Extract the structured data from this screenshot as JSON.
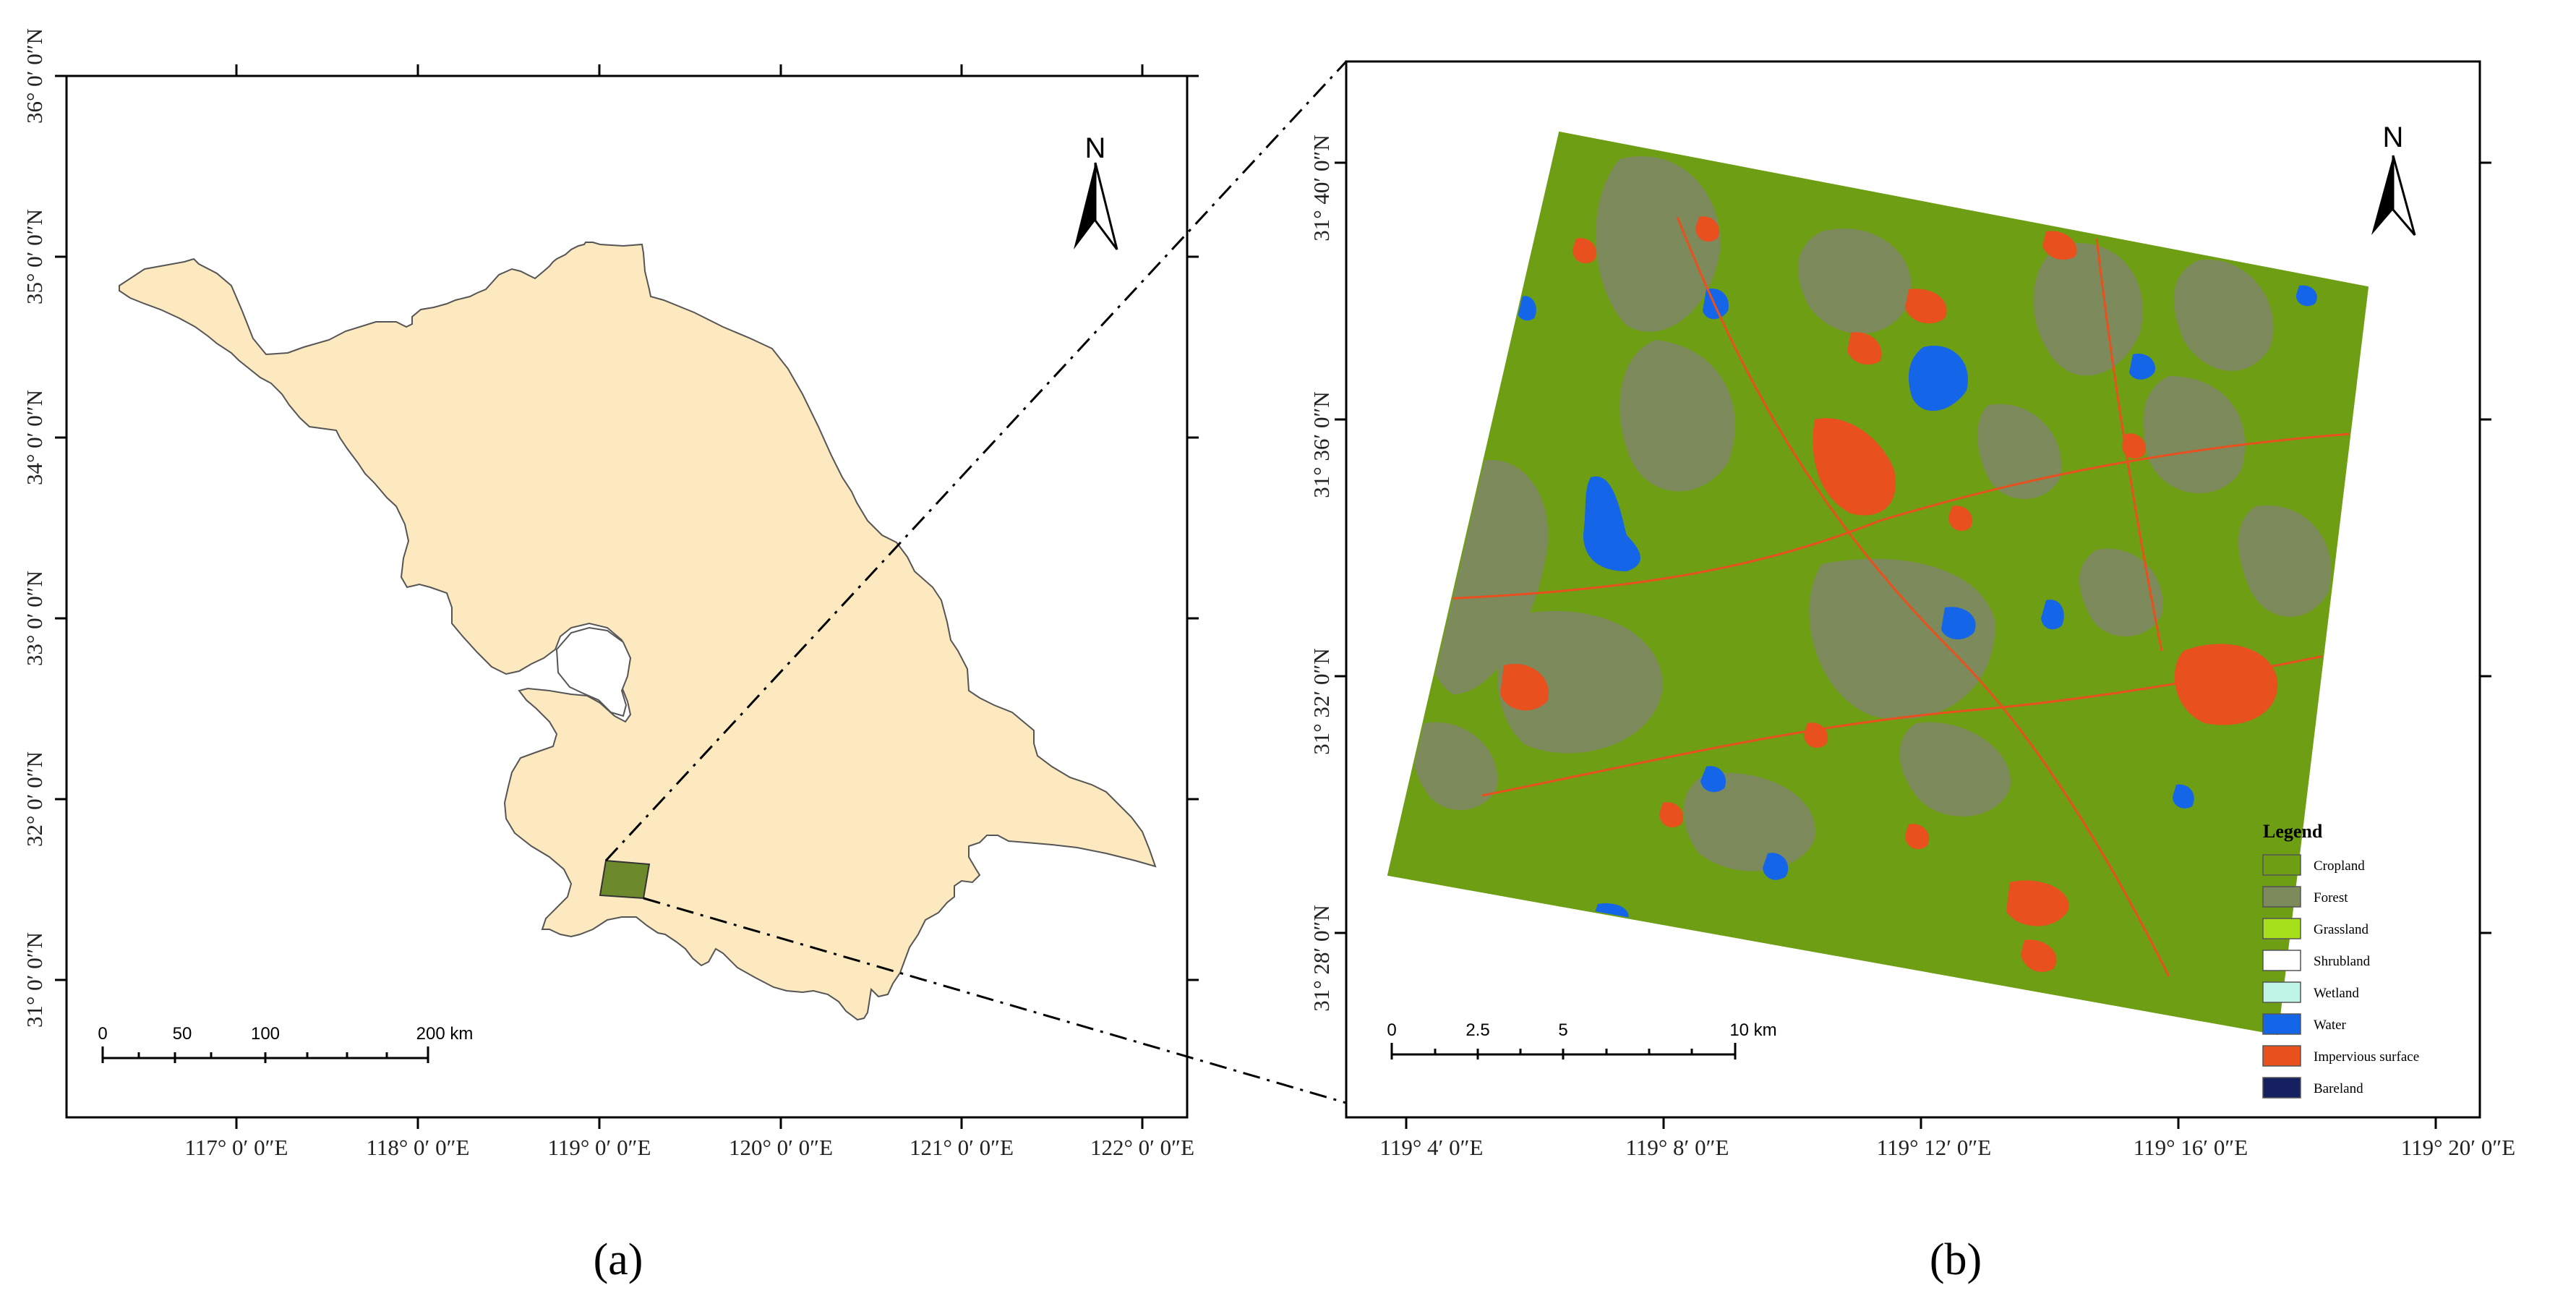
{
  "panel_a": {
    "label": "(a)",
    "x_ticks": [
      "117° 0′ 0″E",
      "118° 0′ 0″E",
      "119° 0′ 0″E",
      "120° 0′ 0″E",
      "121° 0′ 0″E",
      "122° 0′ 0″E"
    ],
    "y_ticks": [
      "36° 0′ 0″N",
      "35° 0′ 0″N",
      "34° 0′ 0″N",
      "33° 0′ 0″N",
      "32° 0′ 0″N",
      "31° 0′ 0″N"
    ],
    "north_label": "N",
    "scale_labels": [
      "0",
      "50",
      "100",
      "200 km"
    ],
    "colors": {
      "province_fill": "#fde9c0",
      "study_area_fill": "#6c8a2c"
    }
  },
  "panel_b": {
    "label": "(b)",
    "x_ticks": [
      "119° 4′ 0″E",
      "119° 8′ 0″E",
      "119° 12′ 0″E",
      "119° 16′ 0″E",
      "119° 20′ 0″E"
    ],
    "y_ticks": [
      "31° 40′ 0″N",
      "31° 36′ 0″N",
      "31° 32′ 0″N",
      "31° 28′ 0″N"
    ],
    "north_label": "N",
    "scale_labels": [
      "0",
      "2.5",
      "5",
      "10 km"
    ],
    "legend": {
      "title": "Legend",
      "items": [
        {
          "label": "Cropland",
          "color": "#6e9e14"
        },
        {
          "label": "Forest",
          "color": "#7d8a5c"
        },
        {
          "label": "Grassland",
          "color": "#a6e01a"
        },
        {
          "label": "Shrubland",
          "color": "#ffffff"
        },
        {
          "label": "Wetland",
          "color": "#bff5e6"
        },
        {
          "label": "Water",
          "color": "#1565e8"
        },
        {
          "label": "Impervious surface",
          "color": "#e8501e"
        },
        {
          "label": "Bareland",
          "color": "#142060"
        }
      ]
    }
  }
}
